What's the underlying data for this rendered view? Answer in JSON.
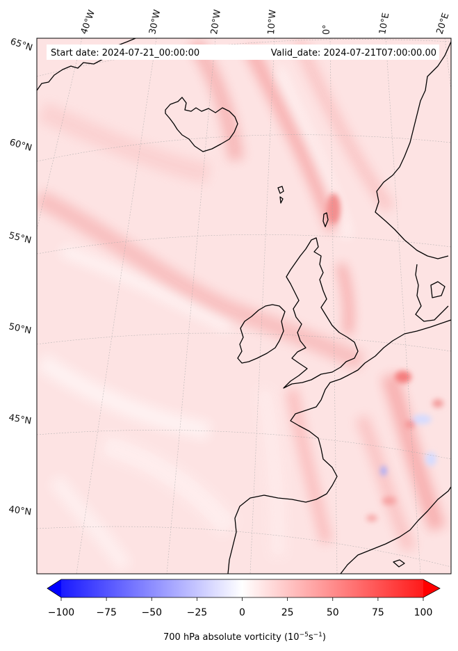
{
  "header": {
    "start_date": "Start date: 2024-07-21_00:00:00",
    "valid_date": "Valid_date: 2024-07-21T07:00:00.00"
  },
  "map": {
    "longitude_labels": [
      "40°W",
      "30°W",
      "20°W",
      "10°W",
      "0°",
      "10°E",
      "20°E"
    ],
    "latitude_labels": [
      "65°N",
      "60°N",
      "55°N",
      "50°N",
      "45°N",
      "40°N"
    ],
    "field_colormap": "bwr",
    "coastline_color": "#000000",
    "gridlines": true
  },
  "colorbar": {
    "ticks": [
      "−100",
      "−75",
      "−50",
      "−25",
      "0",
      "25",
      "50",
      "75",
      "100"
    ],
    "vmin": -100,
    "vmax": 100,
    "extend": "both",
    "label": "700 hPa absolute vorticity (10",
    "label_exp1": "−5",
    "label_mid": "s",
    "label_exp2": "−1",
    "label_end": ")",
    "min_color": "#0000ff",
    "mid_color": "#ffffff",
    "max_color": "#ff0000"
  }
}
